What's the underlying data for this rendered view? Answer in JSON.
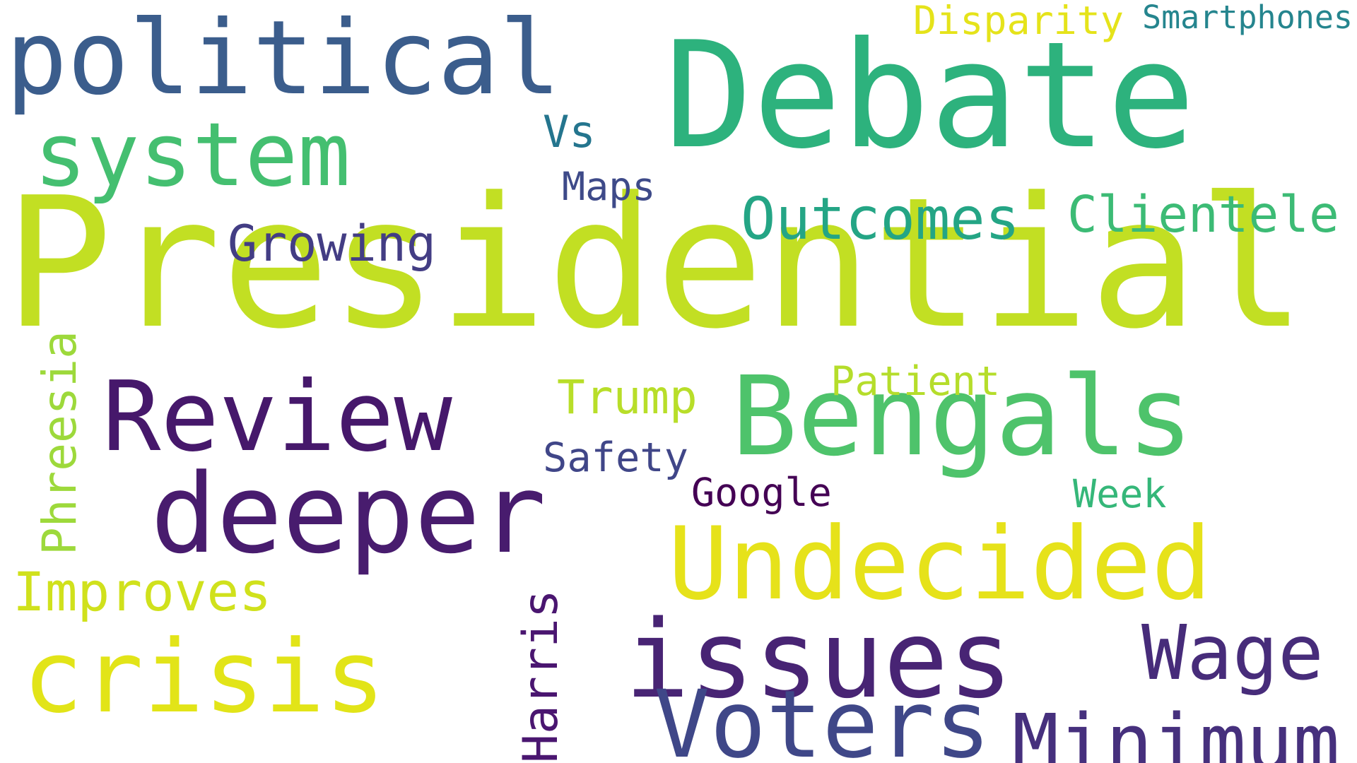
{
  "words": {
    "presidential": {
      "text": "Presidential",
      "color": "#c2df23"
    },
    "debate": {
      "text": "Debate",
      "color": "#2db27d"
    },
    "political": {
      "text": "political",
      "color": "#3b5d8c"
    },
    "system": {
      "text": "system",
      "color": "#44bf70"
    },
    "review": {
      "text": "Review",
      "color": "#46186b"
    },
    "bengals": {
      "text": "Bengals",
      "color": "#4ec36b"
    },
    "deeper": {
      "text": "deeper",
      "color": "#481c6e"
    },
    "undecided": {
      "text": "Undecided",
      "color": "#e6e21a"
    },
    "issues": {
      "text": "issues",
      "color": "#482474"
    },
    "crisis": {
      "text": "crisis",
      "color": "#e2e418"
    },
    "voters": {
      "text": "Voters",
      "color": "#3f4788"
    },
    "minimum": {
      "text": "Minimum",
      "color": "#46307d"
    },
    "wage": {
      "text": "Wage",
      "color": "#472c7a"
    },
    "outcomes": {
      "text": "Outcomes",
      "color": "#24a585"
    },
    "clientele": {
      "text": "Clientele",
      "color": "#3cbb75"
    },
    "growing": {
      "text": "Growing",
      "color": "#433d84"
    },
    "vs": {
      "text": "Vs",
      "color": "#24758e"
    },
    "maps": {
      "text": "Maps",
      "color": "#3e4a89"
    },
    "disparity": {
      "text": "Disparity",
      "color": "#e5e31a"
    },
    "smartphones": {
      "text": "Smartphones",
      "color": "#25858e"
    },
    "trump": {
      "text": "Trump",
      "color": "#b8de29"
    },
    "patient": {
      "text": "Patient",
      "color": "#b5dd2b"
    },
    "safety": {
      "text": "Safety",
      "color": "#404688"
    },
    "google": {
      "text": "Google",
      "color": "#440154"
    },
    "week": {
      "text": "Week",
      "color": "#35b779"
    },
    "improves": {
      "text": "Improves",
      "color": "#d0e11c"
    },
    "phreesia": {
      "text": "Phreesia",
      "color": "#9dd93b"
    },
    "harris": {
      "text": "Harris",
      "color": "#4a1670"
    }
  }
}
